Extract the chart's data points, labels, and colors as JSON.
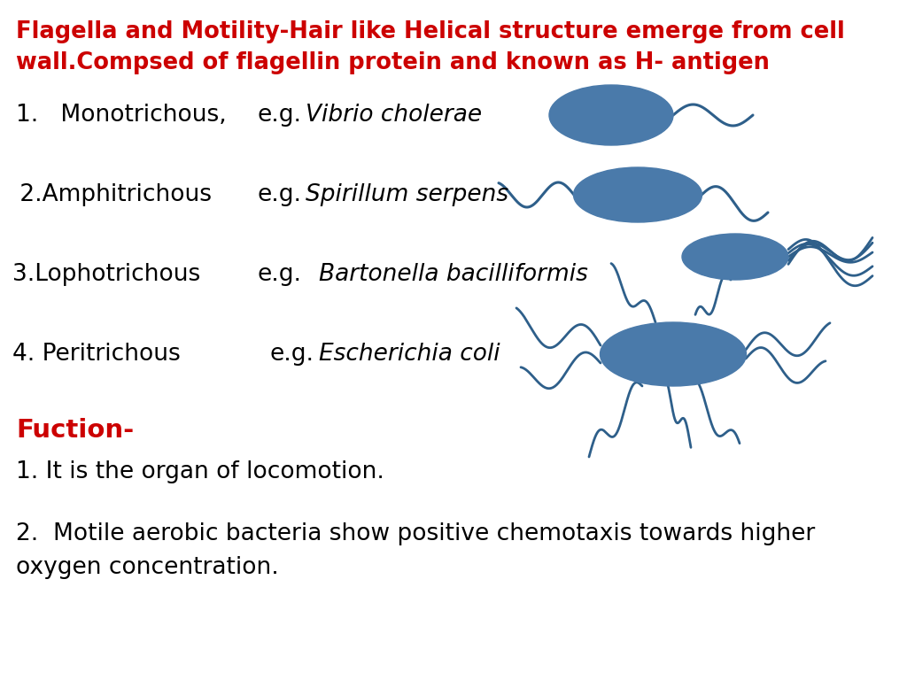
{
  "title_line1": "Flagella and Motility-Hair like Helical structure emerge from cell",
  "title_line2": "wall.Compsed of flagellin protein and known as H- antigen",
  "title_color": "#cc0000",
  "bg_color": "#ffffff",
  "body_color": "#000000",
  "red_color": "#cc0000",
  "bacteria_color": "#4a7aaa",
  "flagella_color": "#2e5f8a",
  "row1_text": [
    "1.   Monotrichous,",
    "e.g.",
    "Vibrio cholerae"
  ],
  "row2_text": [
    " 2.Amphitrichous",
    "e.g.",
    "Spirillum serpens"
  ],
  "row3_text": [
    "3.Lophotrichous",
    "e.g.",
    "Bartonella bacilliformis"
  ],
  "row4_text": [
    "4. Peritrichous",
    "e.g.",
    "Escherichia coli"
  ],
  "function_label": "Fuction-",
  "function1": "1. It is the organ of locomotion.",
  "function2": "2.  Motile aerobic bacteria show positive chemotaxis towards higher oxygen concentration."
}
